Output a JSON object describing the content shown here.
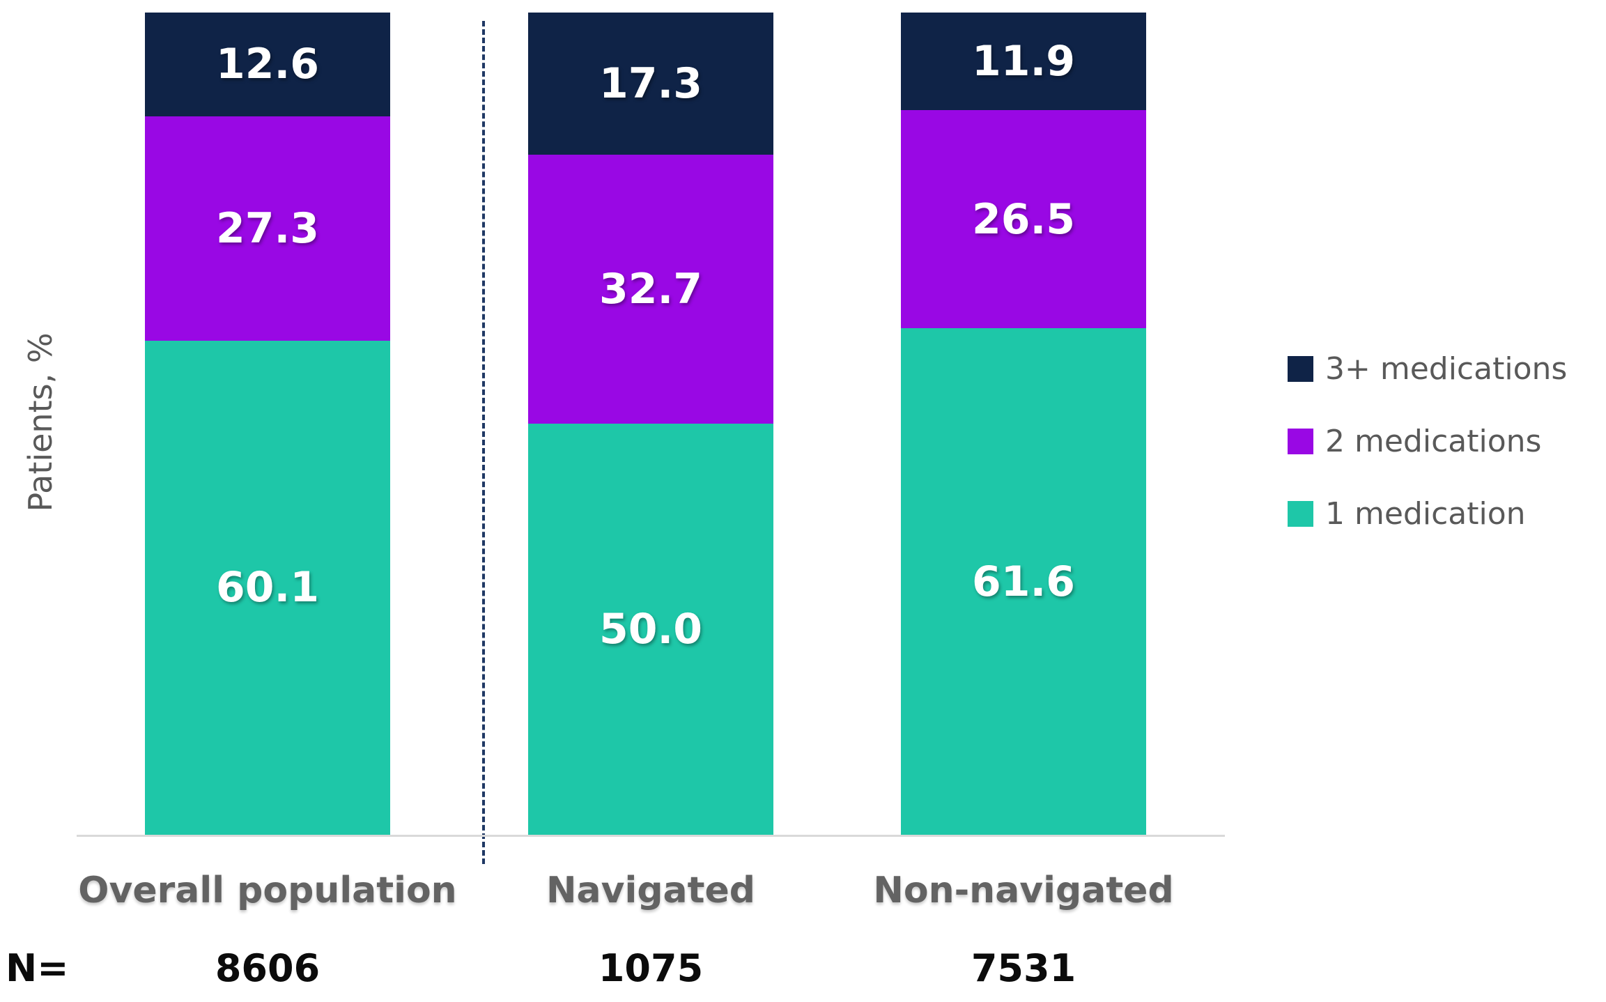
{
  "chart_data": {
    "type": "bar",
    "subtype": "stacked-100-percent",
    "title": "",
    "ylabel": "Patients, %",
    "xlabel": "",
    "categories": [
      "Overall population",
      "Navigated",
      "Non-navigated"
    ],
    "n_label": "N=",
    "n_values": [
      "8606",
      "1075",
      "7531"
    ],
    "series": [
      {
        "name": "3+ medications",
        "color": "#0f2347",
        "values": [
          12.6,
          17.3,
          11.9
        ]
      },
      {
        "name": "2 medications",
        "color": "#9908e4",
        "values": [
          27.3,
          32.7,
          26.5
        ]
      },
      {
        "name": "1 medication",
        "color": "#1ec7a8",
        "values": [
          60.1,
          50.0,
          61.6
        ]
      }
    ],
    "value_labels_shown": true,
    "value_label_color": "#ffffff",
    "legend_position": "right",
    "grid": false,
    "ylim": [
      0,
      100
    ],
    "axis_line_color": "#d9d9d9",
    "divider_after_category_index": 0,
    "divider_style": "dashed",
    "divider_color": "#1f3864",
    "category_label_color": "#636363",
    "n_text_color": "#0b0b0b"
  }
}
